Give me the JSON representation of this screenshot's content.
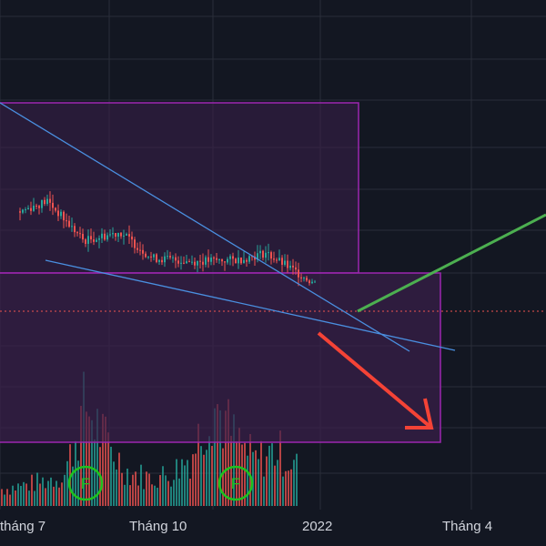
{
  "chart_data": {
    "type": "candlestick",
    "grid": true,
    "colors": {
      "background": "#131722",
      "grid": "#2a2e39",
      "up": "#26a69a",
      "down": "#ef5350",
      "zone_border": "#9c27b0",
      "zone_fill": "#3a1f4a",
      "trendline": "#4a8fe0",
      "forecast_up": "#4caf50",
      "forecast_down": "#f44336",
      "marker": "#1ec31e",
      "price_line": "#ef5350",
      "text": "#d1d4dc"
    },
    "x_axis": {
      "ticks": [
        "tháng 7",
        "Tháng 10",
        "2022",
        "Tháng 4"
      ]
    },
    "price_series_trend": [
      {
        "x": 0.0,
        "y": 0.62
      },
      {
        "x": 0.3,
        "y": 0.68
      },
      {
        "x": 0.7,
        "y": 0.45
      },
      {
        "x": 1.1,
        "y": 0.5
      },
      {
        "x": 1.45,
        "y": 0.35
      },
      {
        "x": 1.9,
        "y": 0.33
      },
      {
        "x": 2.4,
        "y": 0.34
      },
      {
        "x": 2.7,
        "y": 0.38
      },
      {
        "x": 3.0,
        "y": 0.28
      },
      {
        "x": 3.25,
        "y": 0.2
      }
    ],
    "volume_profile": [
      0.15,
      0.18,
      0.22,
      0.28,
      0.9,
      0.55,
      0.3,
      0.25,
      0.28,
      0.45,
      0.95,
      0.6,
      0.4,
      0.5,
      0.35
    ],
    "markers": [
      {
        "label": "F",
        "x": 0.72
      },
      {
        "label": "F",
        "x": 2.37
      }
    ],
    "zones": [
      {
        "name": "upper-zone"
      },
      {
        "name": "lower-zone"
      }
    ],
    "forecast": [
      {
        "direction": "up"
      },
      {
        "direction": "down"
      }
    ]
  }
}
